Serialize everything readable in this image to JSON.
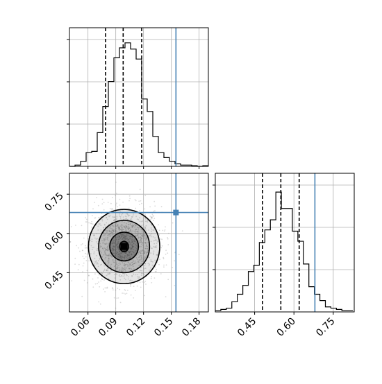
{
  "colors": {
    "truth": "#4682b4",
    "hist": "#000000",
    "grid": "#b0b0b0",
    "points": "#999999",
    "density": "#000000"
  },
  "chart_data": [
    {
      "type": "histogram",
      "panel": "top-left",
      "parameter": "x",
      "xlim": [
        0.04,
        0.19
      ],
      "grid": true,
      "bins": [
        [
          0.04,
          0.0
        ],
        [
          0.046,
          0.01
        ],
        [
          0.052,
          0.04
        ],
        [
          0.058,
          0.11
        ],
        [
          0.064,
          0.12
        ],
        [
          0.07,
          0.27
        ],
        [
          0.076,
          0.48
        ],
        [
          0.082,
          0.68
        ],
        [
          0.088,
          0.87
        ],
        [
          0.094,
          0.95
        ],
        [
          0.1,
          0.99
        ],
        [
          0.106,
          0.94
        ],
        [
          0.112,
          0.86
        ],
        [
          0.118,
          0.54
        ],
        [
          0.124,
          0.44
        ],
        [
          0.13,
          0.24
        ],
        [
          0.136,
          0.11
        ],
        [
          0.142,
          0.07
        ],
        [
          0.148,
          0.04
        ],
        [
          0.154,
          0.02
        ],
        [
          0.16,
          0.01
        ],
        [
          0.166,
          0.01
        ],
        [
          0.172,
          0.005
        ],
        [
          0.178,
          0.0
        ],
        [
          0.184,
          0.005
        ]
      ],
      "quantiles": [
        0.079,
        0.098,
        0.118
      ],
      "truth": 0.155
    },
    {
      "type": "scatter",
      "panel": "bottom-left",
      "xlim": [
        0.04,
        0.19
      ],
      "ylim": [
        0.3,
        0.83
      ],
      "xticks": [
        "0.06",
        "0.09",
        "0.12",
        "0.15",
        "0.18"
      ],
      "yticks": [
        "0.45",
        "0.60",
        "0.75"
      ],
      "grid": true,
      "center": [
        0.099,
        0.55
      ],
      "spread": [
        0.02,
        0.075
      ],
      "contours": [
        {
          "rx": 0.0048,
          "ry": 0.02
        },
        {
          "rx": 0.0155,
          "ry": 0.055
        },
        {
          "rx": 0.0275,
          "ry": 0.1
        },
        {
          "rx": 0.0385,
          "ry": 0.142
        }
      ],
      "truth": [
        0.155,
        0.68
      ]
    },
    {
      "type": "histogram",
      "panel": "bottom-right",
      "parameter": "y",
      "xlim": [
        0.3,
        0.83
      ],
      "xticks": [
        "0.45",
        "0.60",
        "0.75"
      ],
      "grid": true,
      "bins": [
        [
          0.3,
          0.01
        ],
        [
          0.321,
          0.02
        ],
        [
          0.342,
          0.03
        ],
        [
          0.363,
          0.08
        ],
        [
          0.384,
          0.14
        ],
        [
          0.405,
          0.21
        ],
        [
          0.426,
          0.32
        ],
        [
          0.447,
          0.37
        ],
        [
          0.468,
          0.55
        ],
        [
          0.489,
          0.65
        ],
        [
          0.51,
          0.73
        ],
        [
          0.531,
          0.95
        ],
        [
          0.552,
          0.82
        ],
        [
          0.573,
          0.82
        ],
        [
          0.594,
          0.64
        ],
        [
          0.615,
          0.56
        ],
        [
          0.636,
          0.38
        ],
        [
          0.657,
          0.2
        ],
        [
          0.678,
          0.14
        ],
        [
          0.699,
          0.09
        ],
        [
          0.72,
          0.04
        ],
        [
          0.741,
          0.03
        ],
        [
          0.762,
          0.02
        ],
        [
          0.783,
          0.01
        ],
        [
          0.804,
          0.01
        ]
      ],
      "quantiles": [
        0.48,
        0.55,
        0.62
      ],
      "truth": 0.68
    }
  ]
}
